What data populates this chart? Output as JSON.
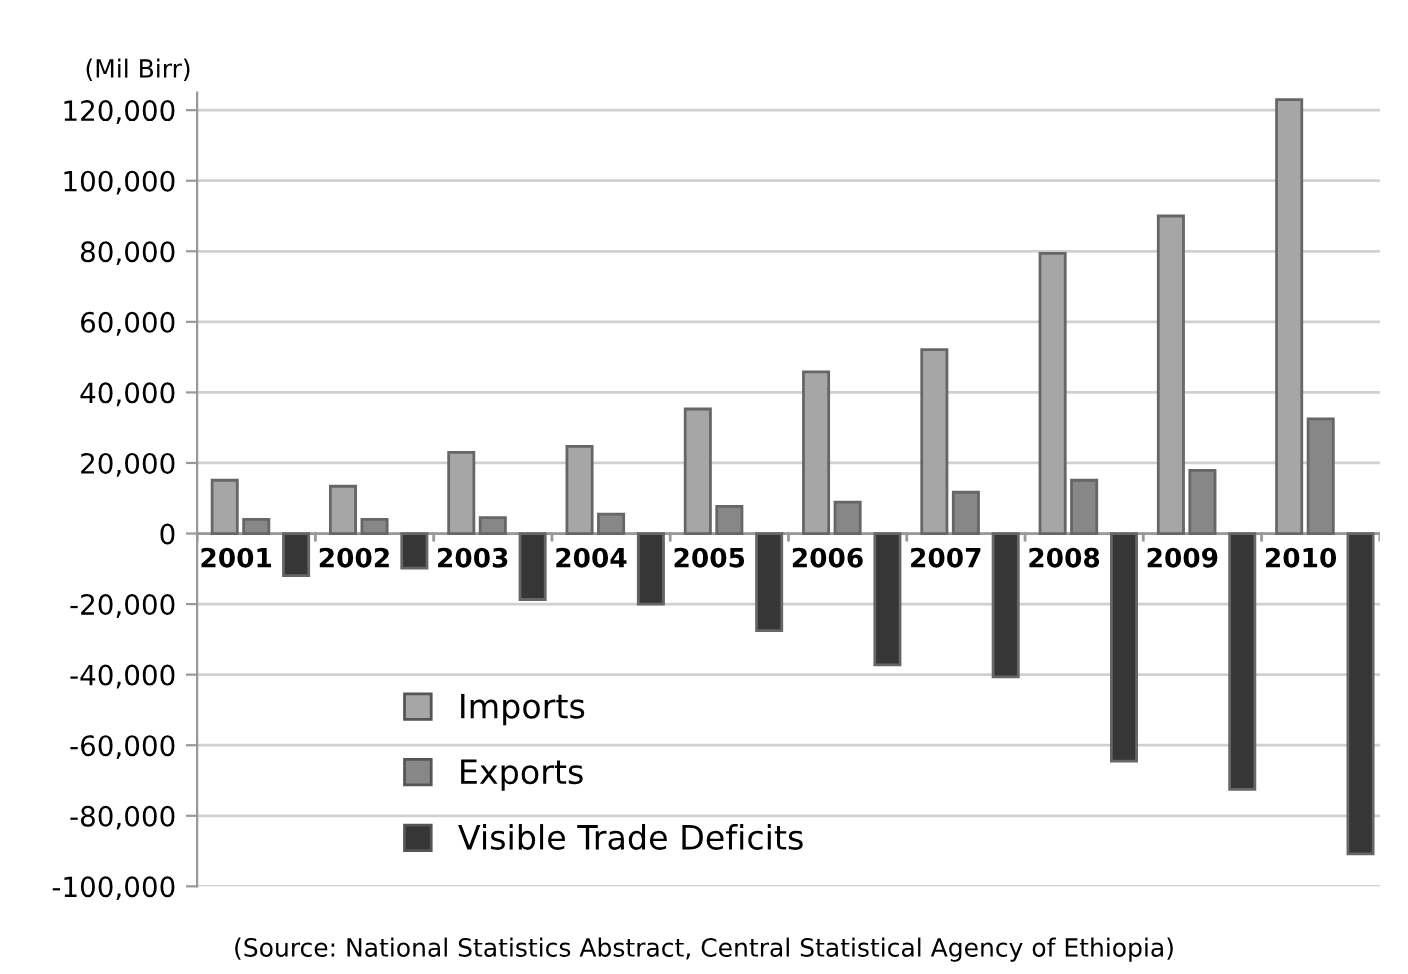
{
  "chart_data": {
    "type": "bar",
    "ylabel": "(Mil Birr)",
    "categories": [
      "2001",
      "2002",
      "2003",
      "2004",
      "2005",
      "2006",
      "2007",
      "2008",
      "2009",
      "2010"
    ],
    "series": [
      {
        "name": "Imports",
        "color": "#a6a6a6",
        "values": [
          15100,
          13400,
          23000,
          24700,
          35300,
          45800,
          52100,
          79400,
          90000,
          123000
        ]
      },
      {
        "name": "Exports",
        "color": "#878787",
        "values": [
          4000,
          4000,
          4500,
          5500,
          7700,
          8900,
          11700,
          15100,
          17900,
          32500
        ]
      },
      {
        "name": "Visible Trade Deficits",
        "color": "#363636",
        "values": [
          -11900,
          -9800,
          -18700,
          -20000,
          -27500,
          -37200,
          -40600,
          -64500,
          -72500,
          -90800
        ]
      }
    ],
    "ylim": [
      -100000,
      125000
    ],
    "yticks": [
      {
        "value": -100000,
        "label": "-100,000"
      },
      {
        "value": -80000,
        "label": "-80,000"
      },
      {
        "value": -60000,
        "label": "-60,000"
      },
      {
        "value": -40000,
        "label": "-40,000"
      },
      {
        "value": -20000,
        "label": "-20,000"
      },
      0,
      {
        "value": 20000,
        "label": "20,000"
      },
      {
        "value": 40000,
        "label": "40,000"
      },
      {
        "value": 60000,
        "label": "60,000"
      },
      {
        "value": 80000,
        "label": "80,000"
      },
      {
        "value": 100000,
        "label": "100,000"
      },
      {
        "value": 120000,
        "label": "120,000"
      }
    ],
    "grid": "y",
    "legend": "bottom left",
    "annotations": [
      "(Source: National Statistics Abstract, Central Statistical Agency of Ethiopia)"
    ]
  }
}
